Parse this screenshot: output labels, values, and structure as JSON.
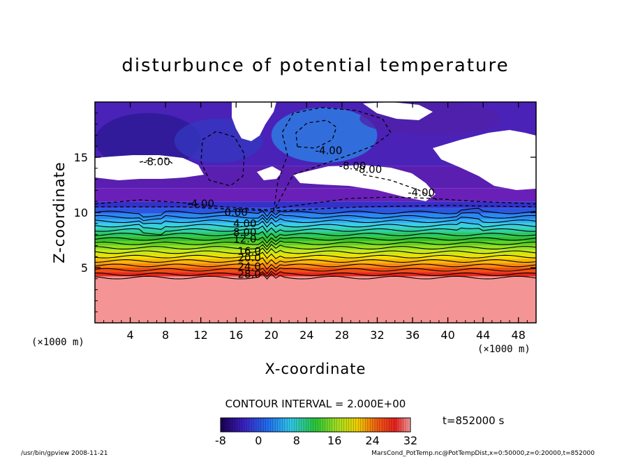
{
  "chart_data": {
    "type": "heatmap",
    "title": "disturbunce of potential temperature",
    "xlabel": "X-coordinate",
    "ylabel": "Z-coordinate",
    "x_unit": "(×1000 m)",
    "xlim": [
      0,
      50
    ],
    "ylim": [
      0,
      20
    ],
    "x_ticks": [
      "4",
      "8",
      "12",
      "16",
      "20",
      "24",
      "28",
      "32",
      "36",
      "40",
      "44",
      "48"
    ],
    "y_ticks": [
      "5",
      "10",
      "15"
    ],
    "contour_interval": "CONTOUR INTERVAL = 2.000E+00",
    "contour_labels": [
      {
        "text": "-8.00",
        "x": 7.0,
        "z": 14.6
      },
      {
        "text": "-4.00",
        "x": 12.0,
        "z": 10.8
      },
      {
        "text": "-4.00",
        "x": 26.5,
        "z": 15.6
      },
      {
        "text": "-8.00",
        "x": 29.2,
        "z": 14.2
      },
      {
        "text": "-8.00",
        "x": 31.0,
        "z": 13.9
      },
      {
        "text": "-4.00",
        "x": 37.0,
        "z": 11.8
      },
      {
        "text": "0.00",
        "x": 16.0,
        "z": 10.0
      },
      {
        "text": "4.00",
        "x": 17.0,
        "z": 9.0
      },
      {
        "text": "8.00",
        "x": 17.0,
        "z": 8.2
      },
      {
        "text": "12.0",
        "x": 17.0,
        "z": 7.6
      },
      {
        "text": "16.0",
        "x": 17.5,
        "z": 6.5
      },
      {
        "text": "20.0",
        "x": 17.5,
        "z": 5.9
      },
      {
        "text": "24.0",
        "x": 17.5,
        "z": 5.1
      },
      {
        "text": "28.0",
        "x": 17.5,
        "z": 4.4
      }
    ],
    "colorbar": {
      "min": -8,
      "max": 32,
      "ticks": [
        "-8",
        "0",
        "8",
        "16",
        "24",
        "32"
      ]
    },
    "legend": null
  },
  "time_label": "t=852000 s",
  "footer": {
    "left": "/usr/bin/gpview   2008-11-21",
    "right": "MarsCond_PotTemp.nc@PotTempDist,x=0:50000,z=0:20000,t=852000"
  }
}
